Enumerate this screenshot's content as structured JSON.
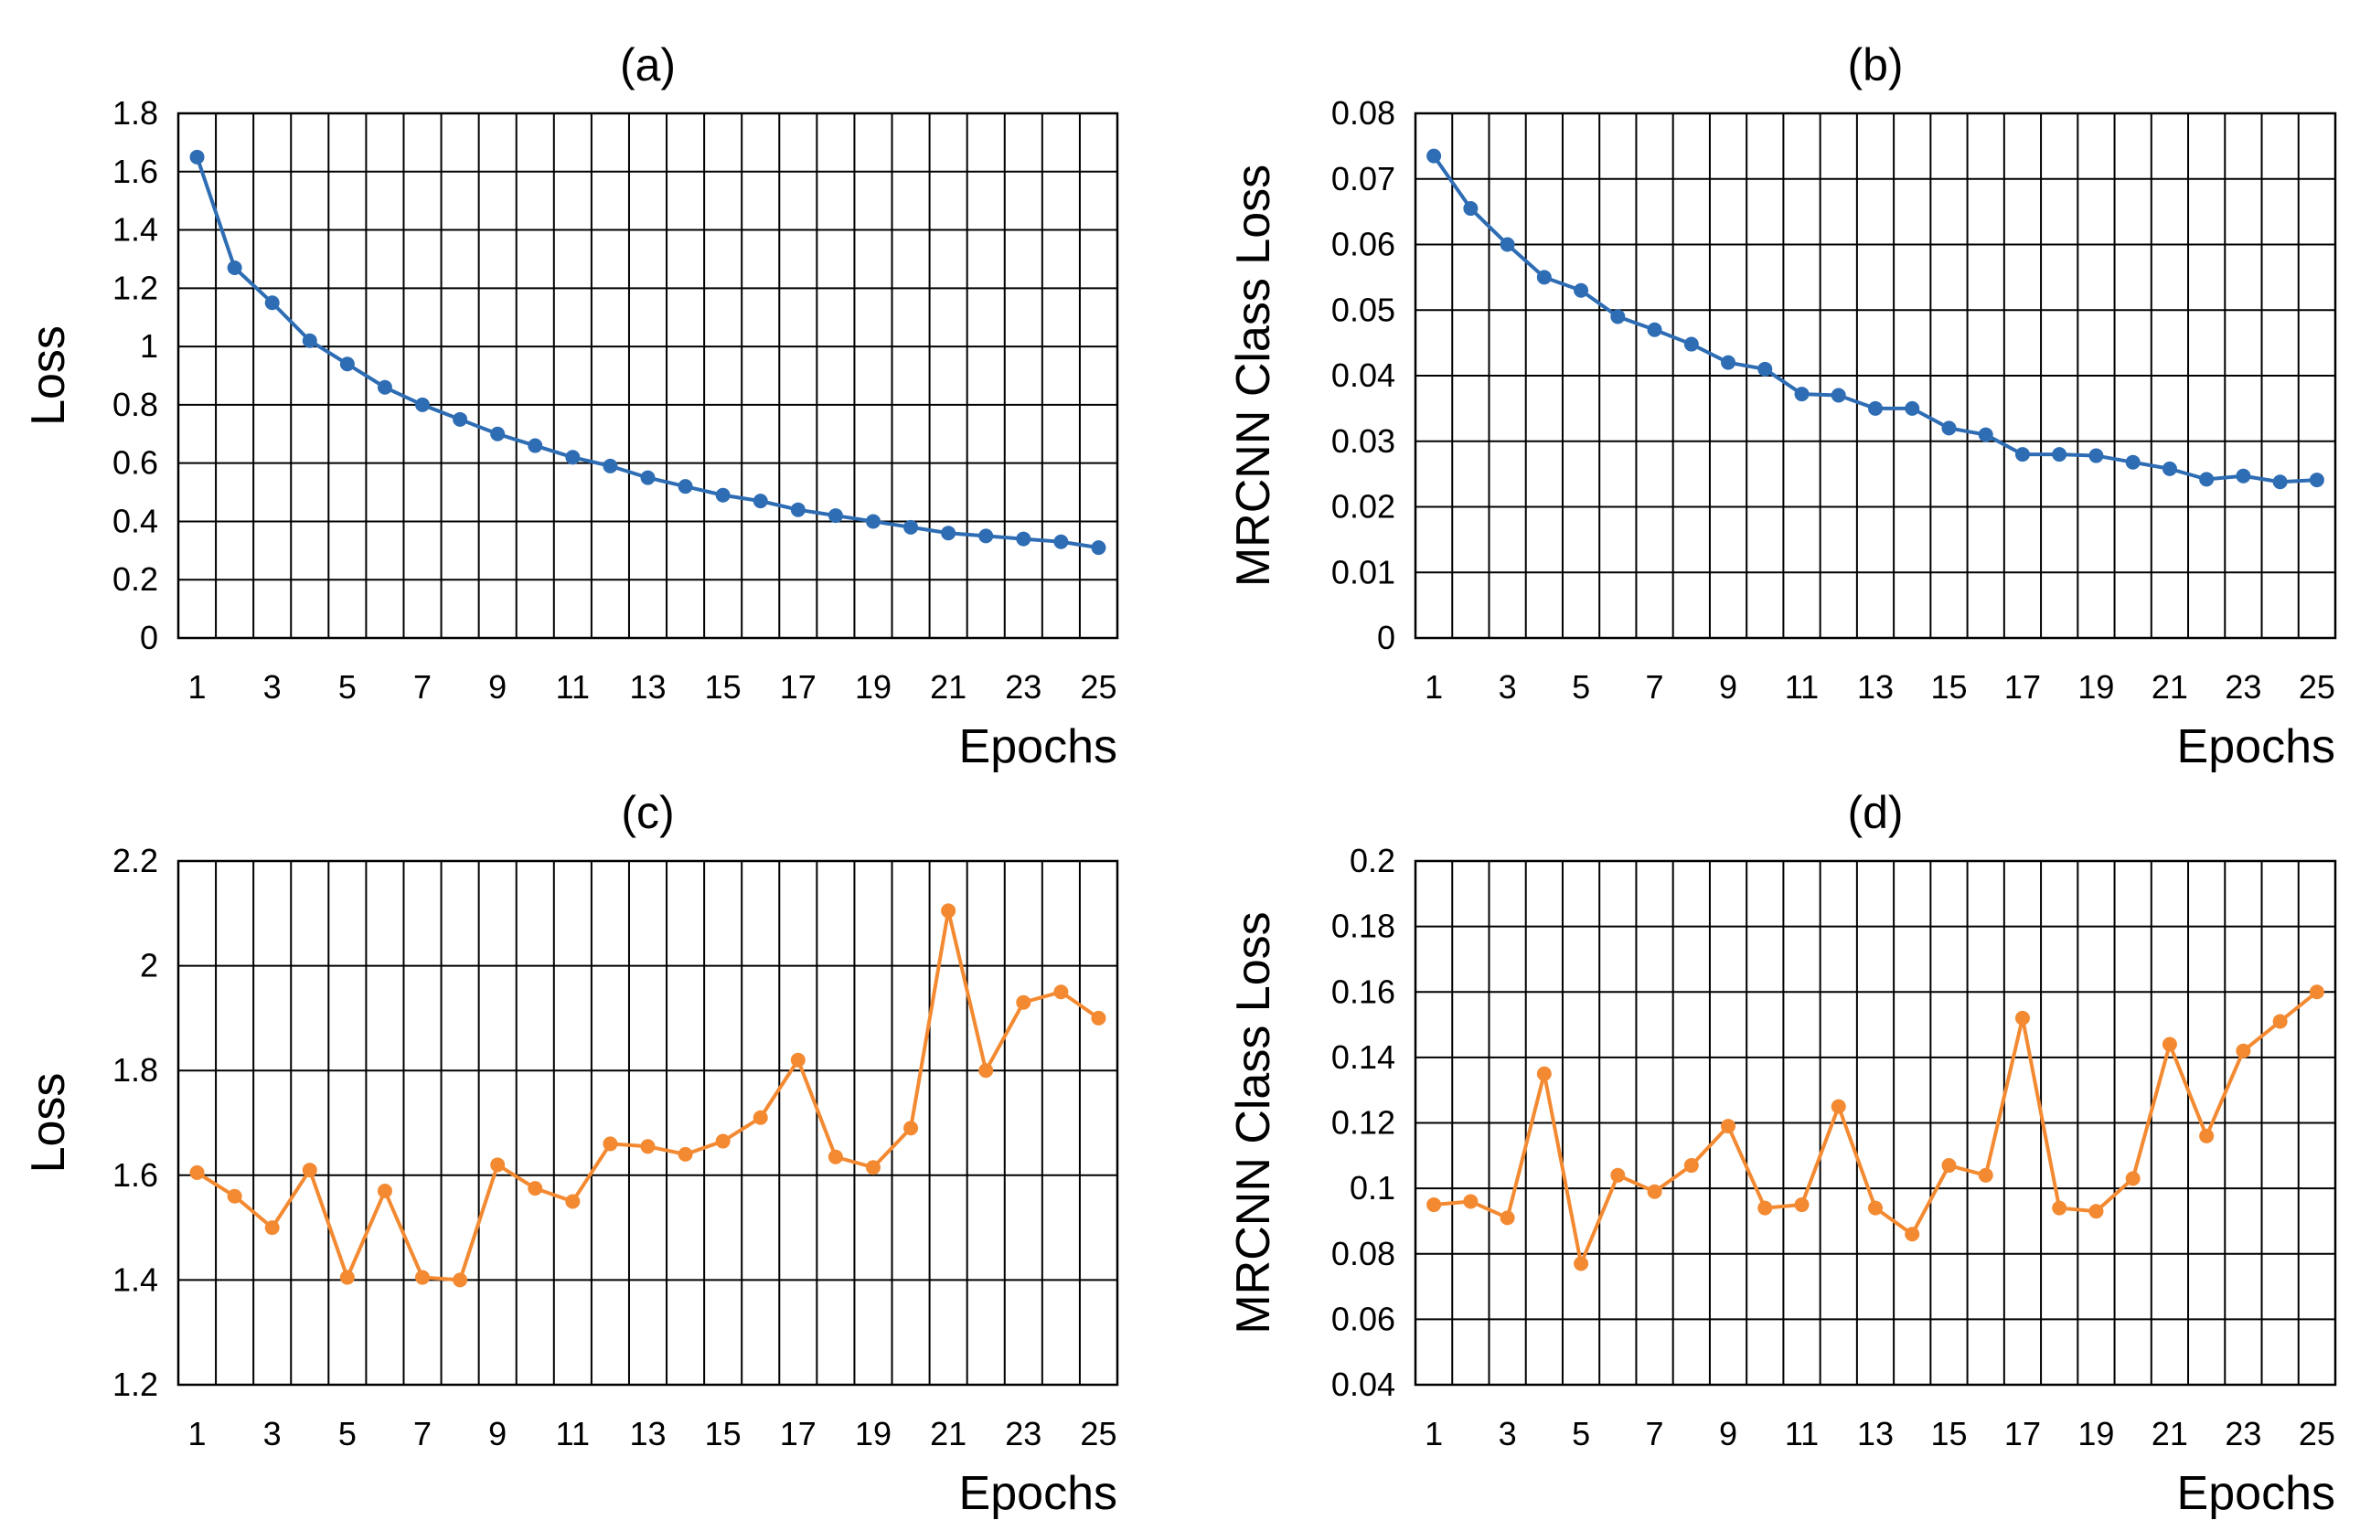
{
  "chart_data": [
    {
      "type": "line",
      "title": "(a)",
      "xlabel": "Epochs",
      "ylabel": "Loss",
      "x": [
        1,
        2,
        3,
        4,
        5,
        6,
        7,
        8,
        9,
        10,
        11,
        12,
        13,
        14,
        15,
        16,
        17,
        18,
        19,
        20,
        21,
        22,
        23,
        24,
        25
      ],
      "x_tick_labels": [
        "1",
        "3",
        "5",
        "7",
        "9",
        "11",
        "13",
        "15",
        "17",
        "19",
        "21",
        "23",
        "25"
      ],
      "ylim": [
        0,
        1.8
      ],
      "y_ticks": [
        0,
        0.2,
        0.4,
        0.6,
        0.8,
        1.0,
        1.2,
        1.4,
        1.6,
        1.8
      ],
      "y_tick_labels": [
        "0",
        "0.2",
        "0.4",
        "0.6",
        "0.8",
        "1",
        "1.2",
        "1.4",
        "1.6",
        "1.8"
      ],
      "grid": true,
      "color": "#2e6db4",
      "series": [
        {
          "values": [
            1.65,
            1.27,
            1.15,
            1.02,
            0.94,
            0.86,
            0.8,
            0.75,
            0.7,
            0.66,
            0.62,
            0.59,
            0.55,
            0.52,
            0.49,
            0.47,
            0.44,
            0.42,
            0.4,
            0.38,
            0.36,
            0.35,
            0.34,
            0.33,
            0.31
          ]
        }
      ]
    },
    {
      "type": "line",
      "title": "(b)",
      "xlabel": "Epochs",
      "ylabel": "MRCNN Class Loss",
      "x": [
        1,
        2,
        3,
        4,
        5,
        6,
        7,
        8,
        9,
        10,
        11,
        12,
        13,
        14,
        15,
        16,
        17,
        18,
        19,
        20,
        21,
        22,
        23,
        24,
        25
      ],
      "x_tick_labels": [
        "1",
        "3",
        "5",
        "7",
        "9",
        "11",
        "13",
        "15",
        "17",
        "19",
        "21",
        "23",
        "25"
      ],
      "ylim": [
        0,
        0.08
      ],
      "y_ticks": [
        0,
        0.01,
        0.02,
        0.03,
        0.04,
        0.05,
        0.06,
        0.07,
        0.08
      ],
      "y_tick_labels": [
        "0",
        "0.01",
        "0.02",
        "0.03",
        "0.04",
        "0.05",
        "0.06",
        "0.07",
        "0.08"
      ],
      "grid": true,
      "color": "#2e6db4",
      "series": [
        {
          "values": [
            0.0735,
            0.0655,
            0.06,
            0.055,
            0.053,
            0.049,
            0.047,
            0.0448,
            0.042,
            0.041,
            0.0372,
            0.037,
            0.035,
            0.035,
            0.032,
            0.031,
            0.028,
            0.028,
            0.0278,
            0.0268,
            0.0258,
            0.0242,
            0.0247,
            0.0238,
            0.0241
          ]
        }
      ]
    },
    {
      "type": "line",
      "title": "(c)",
      "xlabel": "Epochs",
      "ylabel": "Loss",
      "x": [
        1,
        2,
        3,
        4,
        5,
        6,
        7,
        8,
        9,
        10,
        11,
        12,
        13,
        14,
        15,
        16,
        17,
        18,
        19,
        20,
        21,
        22,
        23,
        24,
        25
      ],
      "x_tick_labels": [
        "1",
        "3",
        "5",
        "7",
        "9",
        "11",
        "13",
        "15",
        "17",
        "19",
        "21",
        "23",
        "25"
      ],
      "ylim": [
        1.2,
        2.2
      ],
      "y_ticks": [
        1.2,
        1.4,
        1.6,
        1.8,
        2.0,
        2.2
      ],
      "y_tick_labels": [
        "1.2",
        "1.4",
        "1.6",
        "1.8",
        "2",
        "2.2"
      ],
      "grid": true,
      "color": "#f38a32",
      "series": [
        {
          "values": [
            1.605,
            1.56,
            1.5,
            1.61,
            1.405,
            1.57,
            1.405,
            1.4,
            1.62,
            1.575,
            1.55,
            1.66,
            1.655,
            1.64,
            1.665,
            1.71,
            1.82,
            1.635,
            1.615,
            1.69,
            2.105,
            1.8,
            1.93,
            1.95,
            1.9
          ]
        }
      ]
    },
    {
      "type": "line",
      "title": "(d)",
      "xlabel": "Epochs",
      "ylabel": "MRCNN Class Loss",
      "x": [
        1,
        2,
        3,
        4,
        5,
        6,
        7,
        8,
        9,
        10,
        11,
        12,
        13,
        14,
        15,
        16,
        17,
        18,
        19,
        20,
        21,
        22,
        23,
        24,
        25
      ],
      "x_tick_labels": [
        "1",
        "3",
        "5",
        "7",
        "9",
        "11",
        "13",
        "15",
        "17",
        "19",
        "21",
        "23",
        "25"
      ],
      "ylim": [
        0.04,
        0.2
      ],
      "y_ticks": [
        0.04,
        0.06,
        0.08,
        0.1,
        0.12,
        0.14,
        0.16,
        0.18,
        0.2
      ],
      "y_tick_labels": [
        "0.04",
        "0.06",
        "0.08",
        "0.1",
        "0.12",
        "0.14",
        "0.16",
        "0.18",
        "0.2"
      ],
      "grid": true,
      "color": "#f38a32",
      "series": [
        {
          "values": [
            0.095,
            0.096,
            0.091,
            0.135,
            0.077,
            0.104,
            0.099,
            0.107,
            0.119,
            0.094,
            0.095,
            0.125,
            0.094,
            0.086,
            0.107,
            0.104,
            0.152,
            0.094,
            0.093,
            0.103,
            0.144,
            0.116,
            0.142,
            0.151,
            0.16
          ]
        }
      ]
    }
  ]
}
